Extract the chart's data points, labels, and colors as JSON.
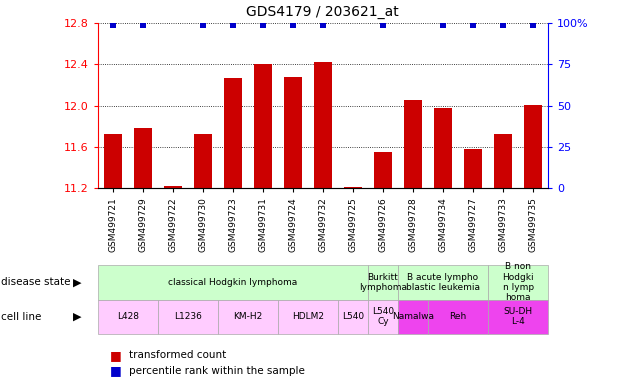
{
  "title": "GDS4179 / 203621_at",
  "samples": [
    "GSM499721",
    "GSM499729",
    "GSM499722",
    "GSM499730",
    "GSM499723",
    "GSM499731",
    "GSM499724",
    "GSM499732",
    "GSM499725",
    "GSM499726",
    "GSM499728",
    "GSM499734",
    "GSM499727",
    "GSM499733",
    "GSM499735"
  ],
  "bar_values": [
    11.72,
    11.78,
    11.22,
    11.72,
    12.27,
    12.4,
    12.28,
    12.42,
    11.21,
    11.55,
    12.05,
    11.98,
    11.58,
    11.72,
    12.01
  ],
  "percentile_show": [
    true,
    true,
    false,
    true,
    true,
    true,
    true,
    true,
    false,
    true,
    false,
    true,
    true,
    true,
    true
  ],
  "bar_color": "#cc0000",
  "percentile_color": "#0000cc",
  "ymin": 11.2,
  "ymax": 12.8,
  "yticks": [
    11.2,
    11.6,
    12.0,
    12.4,
    12.8
  ],
  "right_yticks": [
    0,
    25,
    50,
    75,
    100
  ],
  "disease_state_groups": [
    {
      "label": "classical Hodgkin lymphoma",
      "start": 0,
      "end": 9,
      "color": "#ccffcc"
    },
    {
      "label": "Burkitt\nlymphoma",
      "start": 9,
      "end": 10,
      "color": "#ccffcc"
    },
    {
      "label": "B acute lympho\nblastic leukemia",
      "start": 10,
      "end": 13,
      "color": "#ccffcc"
    },
    {
      "label": "B non\nHodgki\nn lymp\nhoma",
      "start": 13,
      "end": 15,
      "color": "#ccffcc"
    }
  ],
  "cell_line_groups": [
    {
      "label": "L428",
      "start": 0,
      "end": 2,
      "color": "#ffccff"
    },
    {
      "label": "L1236",
      "start": 2,
      "end": 4,
      "color": "#ffccff"
    },
    {
      "label": "KM-H2",
      "start": 4,
      "end": 6,
      "color": "#ffccff"
    },
    {
      "label": "HDLM2",
      "start": 6,
      "end": 8,
      "color": "#ffccff"
    },
    {
      "label": "L540",
      "start": 8,
      "end": 9,
      "color": "#ffccff"
    },
    {
      "label": "L540\nCy",
      "start": 9,
      "end": 10,
      "color": "#ffccff"
    },
    {
      "label": "Namalwa",
      "start": 10,
      "end": 11,
      "color": "#ee44ee"
    },
    {
      "label": "Reh",
      "start": 11,
      "end": 13,
      "color": "#ee44ee"
    },
    {
      "label": "SU-DH\nL-4",
      "start": 13,
      "end": 15,
      "color": "#ee44ee"
    }
  ],
  "legend_items": [
    {
      "label": "transformed count",
      "color": "#cc0000"
    },
    {
      "label": "percentile rank within the sample",
      "color": "#0000cc"
    }
  ]
}
